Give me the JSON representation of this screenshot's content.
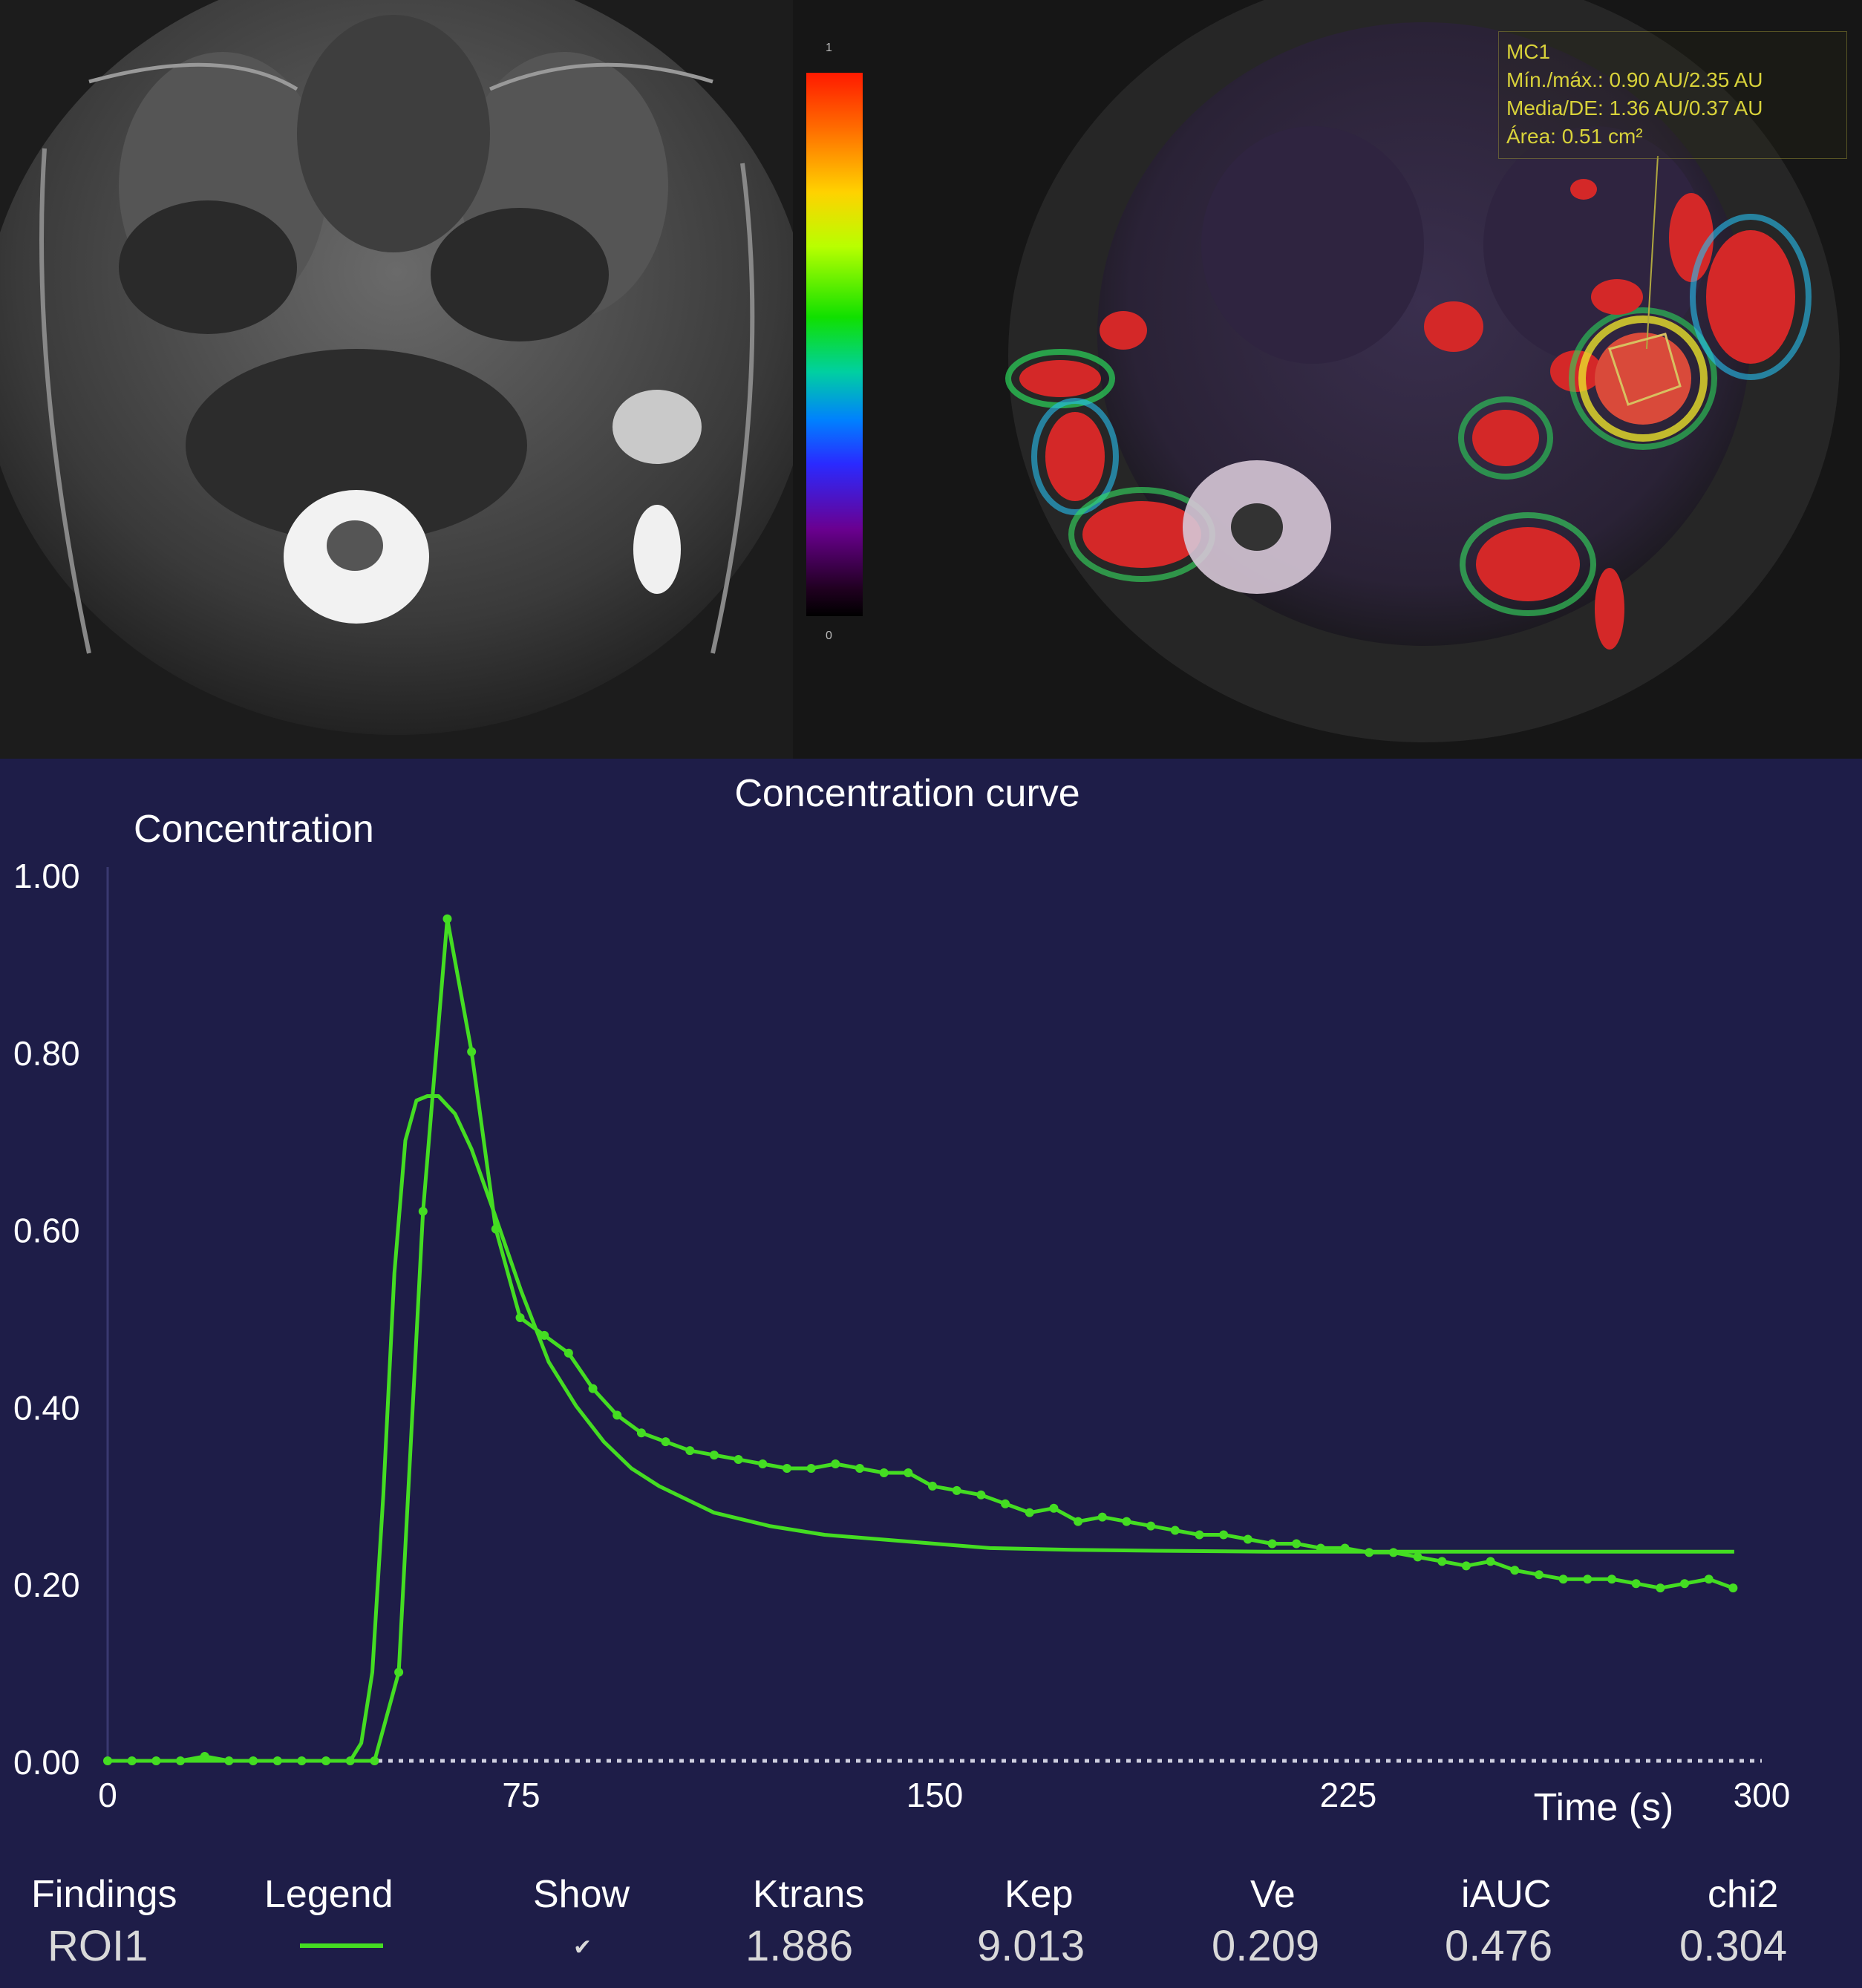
{
  "roi_overlay": {
    "title": "MC1",
    "minmax": "Mín./máx.: 0.90 AU/2.35 AU",
    "mean_sd": "Media/DE: 1.36 AU/0.37 AU",
    "area": "Área: 0.51 cm²"
  },
  "colorbar": {
    "max_label": "1",
    "min_label": "0"
  },
  "chart_data": {
    "type": "line",
    "title": "Concentration curve",
    "ylabel": "Concentration",
    "xlabel": "Time (s)",
    "xlim": [
      0,
      300
    ],
    "ylim": [
      0,
      1.0
    ],
    "xticks": [
      "0",
      "75",
      "150",
      "225",
      "300"
    ],
    "yticks": [
      "0.00",
      "0.20",
      "0.40",
      "0.60",
      "0.80",
      "1.00"
    ],
    "background_color": "#1e1d48",
    "line_color": "#44dd22",
    "series": [
      {
        "kind": "measured",
        "x": [
          0,
          4.4,
          8.8,
          13.2,
          17.6,
          22,
          26.4,
          30.8,
          35.2,
          39.6,
          44,
          48.4,
          52.8,
          57.2,
          61.6,
          66,
          70.4,
          74.8,
          79.2,
          83.6,
          88,
          92.4,
          96.8,
          101.2,
          105.6,
          110,
          114.4,
          118.8,
          123.2,
          127.6,
          132,
          136.4,
          140.8,
          145.2,
          149.6,
          154,
          158.4,
          162.8,
          167.2,
          171.6,
          176,
          180.4,
          184.8,
          189.2,
          193.6,
          198,
          202.4,
          206.8,
          211.2,
          215.6,
          220,
          224.4,
          228.8,
          233.2,
          237.6,
          242,
          246.4,
          250.8,
          255.2,
          259.6,
          264,
          268.4,
          272.8,
          277.2,
          281.6,
          286,
          290.4,
          294.8
        ],
        "y": [
          0,
          0,
          0,
          0,
          0.005,
          0,
          0,
          0,
          0,
          0,
          0,
          0,
          0.1,
          0.62,
          0.95,
          0.8,
          0.6,
          0.5,
          0.48,
          0.46,
          0.42,
          0.39,
          0.37,
          0.36,
          0.35,
          0.345,
          0.34,
          0.335,
          0.33,
          0.33,
          0.335,
          0.33,
          0.325,
          0.325,
          0.31,
          0.305,
          0.3,
          0.29,
          0.28,
          0.285,
          0.27,
          0.275,
          0.27,
          0.265,
          0.26,
          0.255,
          0.255,
          0.25,
          0.245,
          0.245,
          0.24,
          0.24,
          0.235,
          0.235,
          0.23,
          0.225,
          0.22,
          0.225,
          0.215,
          0.21,
          0.205,
          0.205,
          0.205,
          0.2,
          0.195,
          0.2,
          0.205,
          0.195
        ]
      },
      {
        "kind": "fit",
        "x": [
          0,
          44,
          46,
          48,
          50,
          52,
          54,
          56,
          58,
          60,
          63,
          66,
          70,
          75,
          80,
          85,
          90,
          95,
          100,
          110,
          120,
          130,
          140,
          150,
          160,
          175,
          190,
          210,
          230,
          250,
          270,
          295
        ],
        "y": [
          0,
          0,
          0.02,
          0.1,
          0.3,
          0.55,
          0.7,
          0.745,
          0.75,
          0.75,
          0.73,
          0.69,
          0.62,
          0.53,
          0.45,
          0.4,
          0.36,
          0.33,
          0.31,
          0.28,
          0.265,
          0.255,
          0.25,
          0.245,
          0.24,
          0.238,
          0.237,
          0.236,
          0.236,
          0.236,
          0.236,
          0.236
        ]
      }
    ]
  },
  "findings": {
    "headers": [
      "Findings",
      "Legend",
      "Show",
      "Ktrans",
      "Kep",
      "Ve",
      "iAUC",
      "chi2"
    ],
    "row": {
      "name": "ROI1",
      "show_check": "✔",
      "ktrans": "1.886",
      "kep": "9.013",
      "ve": "0.209",
      "iauc": "0.476",
      "chi2": "0.304"
    }
  }
}
